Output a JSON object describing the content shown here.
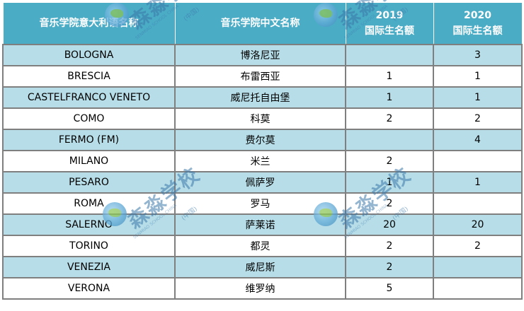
{
  "table": {
    "headers": [
      {
        "label": "音乐学院意大利语名称"
      },
      {
        "label": "音乐学院中文名称"
      },
      {
        "line1": "2019",
        "line2": "国际生名额"
      },
      {
        "line1": "2020",
        "line2": "国际生名额"
      }
    ],
    "rows": [
      {
        "it": "BOLOGNA",
        "cn": "博洛尼亚",
        "y2019": "",
        "y2020": "3"
      },
      {
        "it": "BRESCIA",
        "cn": "布雷西亚",
        "y2019": "1",
        "y2020": "1"
      },
      {
        "it": "CASTELFRANCO VENETO",
        "cn": "威尼托自由堡",
        "y2019": "1",
        "y2020": "1"
      },
      {
        "it": "COMO",
        "cn": "科莫",
        "y2019": "2",
        "y2020": "2"
      },
      {
        "it": "FERMO (FM)",
        "cn": "费尔莫",
        "y2019": "",
        "y2020": "4"
      },
      {
        "it": "MILANO",
        "cn": "米兰",
        "y2019": "2",
        "y2020": ""
      },
      {
        "it": "PESARO",
        "cn": "佩萨罗",
        "y2019": "1",
        "y2020": "1"
      },
      {
        "it": "ROMA",
        "cn": "罗马",
        "y2019": "2",
        "y2020": ""
      },
      {
        "it": "SALERNO",
        "cn": "萨莱诺",
        "y2019": "20",
        "y2020": "20"
      },
      {
        "it": "TORINO",
        "cn": "都灵",
        "y2019": "2",
        "y2020": "2"
      },
      {
        "it": "VENEZIA",
        "cn": "威尼斯",
        "y2019": "2",
        "y2020": ""
      },
      {
        "it": "VERONA",
        "cn": "维罗纳",
        "y2019": "5",
        "y2020": ""
      }
    ]
  },
  "watermark": {
    "brand": "森淼学校",
    "country": "(中国)",
    "sub": "SENMIAO SCHOOL CHINA"
  },
  "colors": {
    "header_bg": "#4bacc6",
    "row_blue": "#b7dee8",
    "row_white": "#ffffff",
    "grid": "#7f7f7f"
  }
}
